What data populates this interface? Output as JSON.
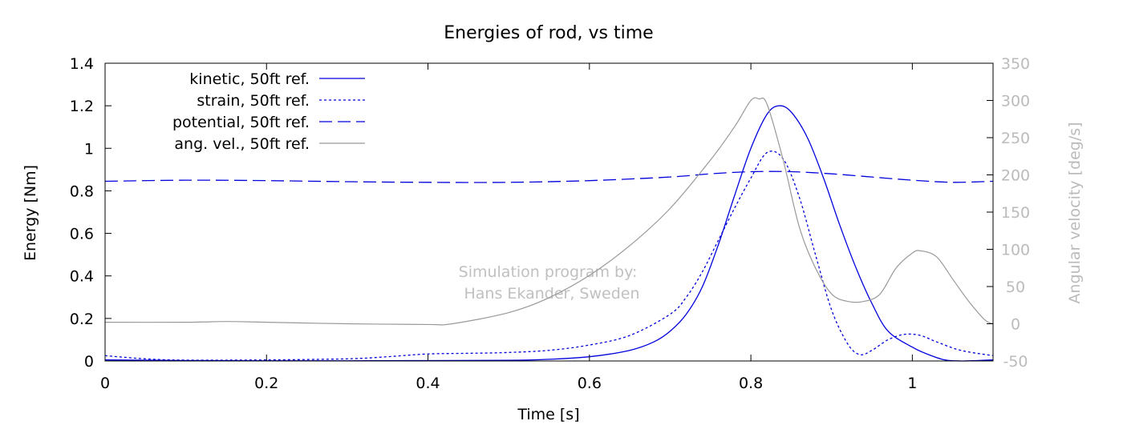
{
  "chart_data": {
    "type": "line",
    "title": "Energies of rod, vs time",
    "xlabel": "Time [s]",
    "ylabel": "Energy [Nm]",
    "y2label": "Angular velocity [deg/s]",
    "xlim": [
      0,
      1.1
    ],
    "ylim": [
      0,
      1.4
    ],
    "y2lim": [
      -50,
      350
    ],
    "xticks": [
      "0",
      "0.2",
      "0.4",
      "0.6",
      "0.8",
      "1"
    ],
    "xtick_values": [
      0,
      0.2,
      0.4,
      0.6,
      0.8,
      1.0
    ],
    "yticks": [
      "0",
      "0.2",
      "0.4",
      "0.6",
      "0.8",
      "1",
      "1.2",
      "1.4"
    ],
    "ytick_values": [
      0,
      0.2,
      0.4,
      0.6,
      0.8,
      1.0,
      1.2,
      1.4
    ],
    "y2ticks": [
      "-50",
      "0",
      "50",
      "100",
      "150",
      "200",
      "250",
      "300",
      "350"
    ],
    "y2tick_values": [
      -50,
      0,
      50,
      100,
      150,
      200,
      250,
      300,
      350
    ],
    "grid": false,
    "legend_position": "top-left",
    "watermark": [
      "Simulation program by:",
      "Hans Ekander, Sweden"
    ],
    "colors": {
      "energy": "#0000dd",
      "angular": "#999999",
      "axis": "#000000",
      "right_axis_text": "#bbbbbb",
      "watermark": "#c0c0c0"
    },
    "series": [
      {
        "name": "kinetic, 50ft ref.",
        "axis": "left",
        "style": "solid",
        "color": "#0000dd",
        "x": [
          0,
          0.1,
          0.2,
          0.3,
          0.4,
          0.5,
          0.55,
          0.6,
          0.65,
          0.68,
          0.7,
          0.72,
          0.74,
          0.76,
          0.78,
          0.8,
          0.82,
          0.835,
          0.85,
          0.87,
          0.89,
          0.91,
          0.93,
          0.95,
          0.97,
          1.0,
          1.02,
          1.04,
          1.06,
          1.08,
          1.1
        ],
        "y": [
          0.005,
          0.002,
          0.001,
          0.001,
          0.002,
          0.003,
          0.008,
          0.02,
          0.05,
          0.09,
          0.14,
          0.22,
          0.35,
          0.55,
          0.78,
          1.0,
          1.16,
          1.2,
          1.17,
          1.05,
          0.86,
          0.64,
          0.44,
          0.27,
          0.14,
          0.065,
          0.03,
          0.005,
          0.0,
          0.002,
          0.005
        ]
      },
      {
        "name": "strain, 50ft ref.",
        "axis": "left",
        "style": "dotted",
        "color": "#0000dd",
        "x": [
          0,
          0.05,
          0.1,
          0.2,
          0.3,
          0.35,
          0.4,
          0.45,
          0.5,
          0.55,
          0.6,
          0.65,
          0.7,
          0.72,
          0.74,
          0.76,
          0.78,
          0.8,
          0.82,
          0.84,
          0.86,
          0.88,
          0.9,
          0.92,
          0.935,
          0.95,
          0.97,
          0.99,
          1.01,
          1.03,
          1.06,
          1.1
        ],
        "y": [
          0.025,
          0.01,
          0.004,
          0.005,
          0.01,
          0.02,
          0.033,
          0.036,
          0.04,
          0.05,
          0.075,
          0.12,
          0.22,
          0.3,
          0.42,
          0.57,
          0.72,
          0.86,
          0.98,
          0.95,
          0.77,
          0.5,
          0.24,
          0.08,
          0.03,
          0.05,
          0.1,
          0.125,
          0.12,
          0.09,
          0.05,
          0.025
        ]
      },
      {
        "name": "potential, 50ft ref.",
        "axis": "left",
        "style": "dashed",
        "color": "#0000dd",
        "x": [
          0,
          0.1,
          0.2,
          0.3,
          0.4,
          0.5,
          0.6,
          0.7,
          0.75,
          0.8,
          0.85,
          0.9,
          0.95,
          1.0,
          1.05,
          1.1
        ],
        "y": [
          0.845,
          0.85,
          0.848,
          0.843,
          0.84,
          0.84,
          0.848,
          0.865,
          0.88,
          0.89,
          0.89,
          0.88,
          0.865,
          0.85,
          0.84,
          0.845
        ]
      },
      {
        "name": "ang. vel., 50ft ref.",
        "axis": "right",
        "style": "solid",
        "color": "#999999",
        "x": [
          0,
          0.1,
          0.15,
          0.2,
          0.3,
          0.4,
          0.43,
          0.5,
          0.55,
          0.6,
          0.65,
          0.7,
          0.75,
          0.78,
          0.8,
          0.81,
          0.82,
          0.84,
          0.86,
          0.88,
          0.9,
          0.92,
          0.94,
          0.96,
          0.98,
          1.0,
          1.01,
          1.03,
          1.05,
          1.07,
          1.09,
          1.1
        ],
        "y": [
          2,
          2,
          3,
          2,
          0,
          -1,
          0,
          15,
          35,
          65,
          105,
          155,
          220,
          265,
          300,
          302,
          295,
          220,
          130,
          75,
          40,
          30,
          30,
          40,
          75,
          95,
          98,
          90,
          60,
          30,
          5,
          0
        ]
      }
    ]
  }
}
